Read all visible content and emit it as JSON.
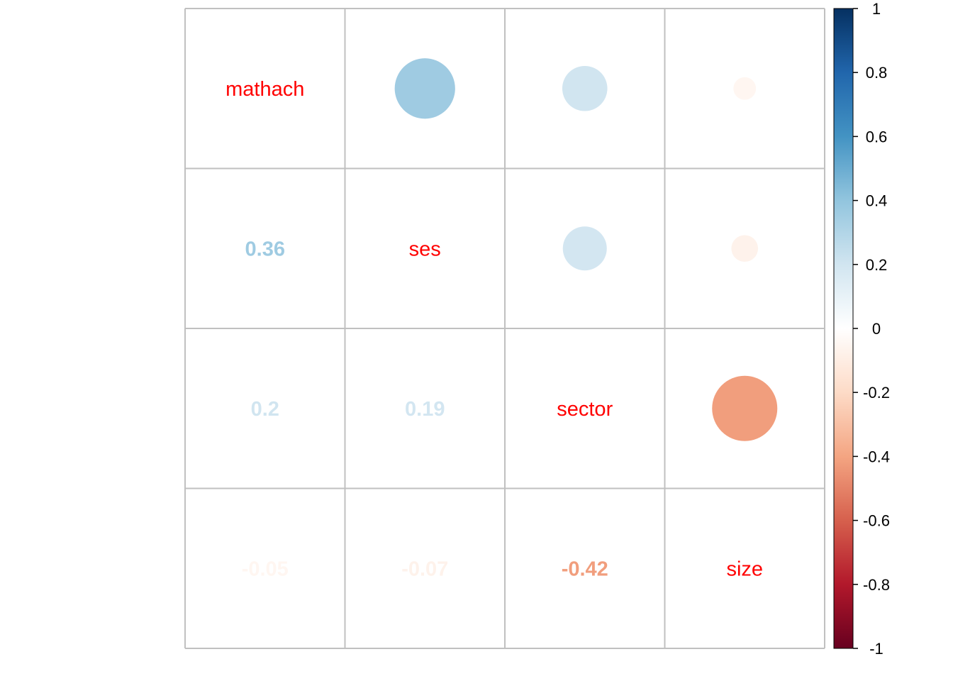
{
  "chart_data": {
    "type": "heatmap",
    "subtype": "correlation-matrix",
    "variables": [
      "mathach",
      "ses",
      "sector",
      "size"
    ],
    "matrix": [
      [
        1,
        0.36,
        0.2,
        -0.05
      ],
      [
        0.36,
        1,
        0.19,
        -0.07
      ],
      [
        0.2,
        0.19,
        1,
        -0.42
      ],
      [
        -0.05,
        -0.07,
        -0.42,
        1
      ]
    ],
    "lower_triangle_labels": [
      {
        "row": 1,
        "col": 0,
        "text": "0.36"
      },
      {
        "row": 2,
        "col": 0,
        "text": "0.2"
      },
      {
        "row": 2,
        "col": 1,
        "text": "0.19"
      },
      {
        "row": 3,
        "col": 0,
        "text": "-0.05"
      },
      {
        "row": 3,
        "col": 1,
        "text": "-0.07"
      },
      {
        "row": 3,
        "col": 2,
        "text": "-0.42"
      }
    ],
    "upper_triangle": "circle",
    "lower_triangle": "number",
    "diagonal": "variable-name",
    "colorbar": {
      "range": [
        -1,
        1
      ],
      "ticks": [
        "1",
        "0.8",
        "0.6",
        "0.4",
        "0.2",
        "0",
        "-0.2",
        "-0.4",
        "-0.6",
        "-0.8",
        "-1"
      ],
      "placement": "right"
    },
    "colors": {
      "label": "#ff0000",
      "grid": "#c0c0c0",
      "palette": [
        "#67001f",
        "#b2182b",
        "#d6604d",
        "#f4a582",
        "#fddbc7",
        "#ffffff",
        "#d1e5f0",
        "#92c5de",
        "#4393c3",
        "#2166ac",
        "#053061"
      ]
    }
  }
}
